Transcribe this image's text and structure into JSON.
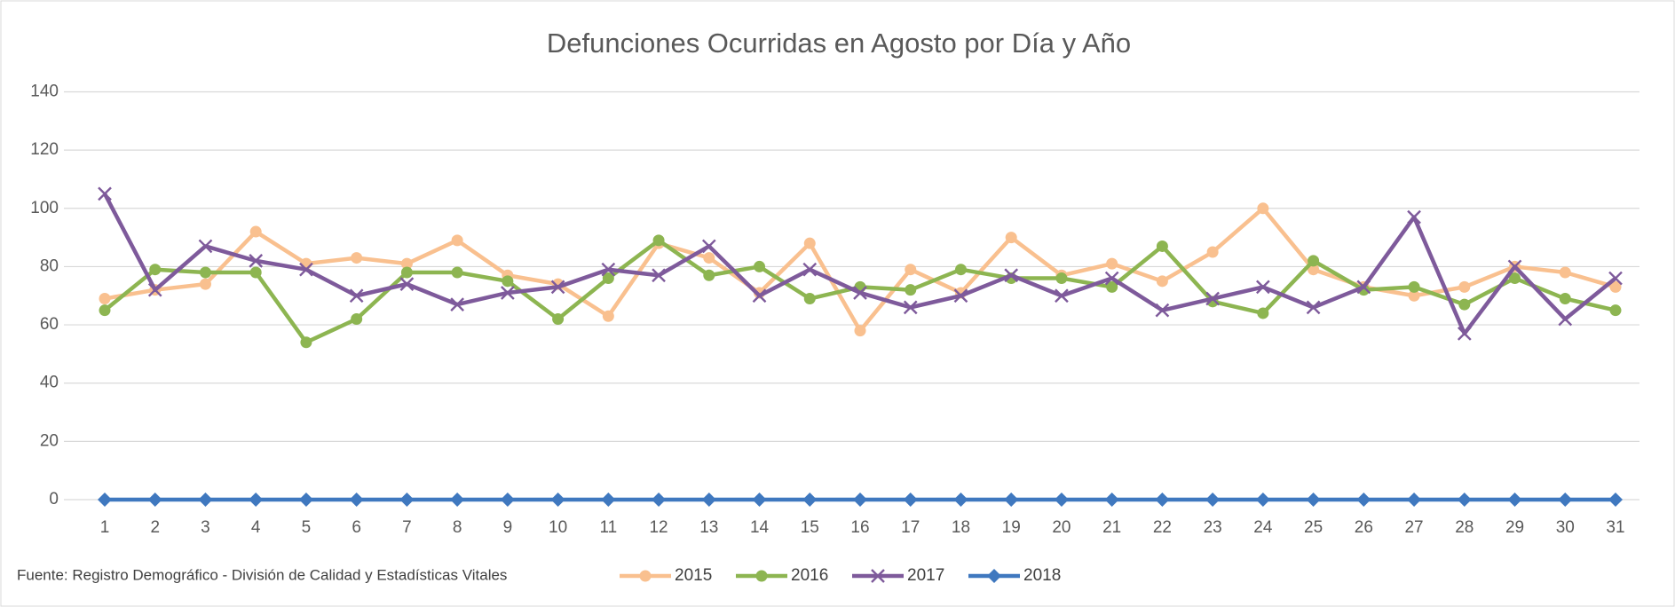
{
  "chart_data": {
    "type": "line",
    "title": "Defunciones Ocurridas en Agosto por Día y Año",
    "source": "Fuente: Registro Demográfico - División de Calidad y Estadísticas Vitales",
    "categories": [
      "1",
      "2",
      "3",
      "4",
      "5",
      "6",
      "7",
      "8",
      "9",
      "10",
      "11",
      "12",
      "13",
      "14",
      "15",
      "16",
      "17",
      "18",
      "19",
      "20",
      "21",
      "22",
      "23",
      "24",
      "25",
      "26",
      "27",
      "28",
      "29",
      "30",
      "31"
    ],
    "series": [
      {
        "name": "2015",
        "color": "#f9c08f",
        "marker": "circle",
        "values": [
          69,
          72,
          74,
          92,
          81,
          83,
          81,
          89,
          77,
          74,
          63,
          88,
          83,
          71,
          88,
          58,
          79,
          71,
          90,
          77,
          81,
          75,
          85,
          100,
          79,
          73,
          70,
          73,
          80,
          78,
          73
        ]
      },
      {
        "name": "2016",
        "color": "#8db551",
        "marker": "circle",
        "values": [
          65,
          79,
          78,
          78,
          54,
          62,
          78,
          78,
          75,
          62,
          76,
          89,
          77,
          80,
          69,
          73,
          72,
          79,
          76,
          76,
          73,
          87,
          68,
          64,
          82,
          72,
          73,
          67,
          76,
          69,
          65
        ]
      },
      {
        "name": "2017",
        "color": "#7e5a9b",
        "marker": "x",
        "values": [
          105,
          72,
          87,
          82,
          79,
          70,
          74,
          67,
          71,
          73,
          79,
          77,
          87,
          70,
          79,
          71,
          66,
          70,
          77,
          70,
          76,
          65,
          69,
          73,
          66,
          73,
          97,
          57,
          80,
          62,
          76
        ]
      },
      {
        "name": "2018",
        "color": "#3f78bf",
        "marker": "diamond",
        "values": [
          0,
          0,
          0,
          0,
          0,
          0,
          0,
          0,
          0,
          0,
          0,
          0,
          0,
          0,
          0,
          0,
          0,
          0,
          0,
          0,
          0,
          0,
          0,
          0,
          0,
          0,
          0,
          0,
          0,
          0,
          0
        ]
      }
    ],
    "ylim": [
      0,
      140
    ],
    "yticks": [
      0,
      20,
      40,
      60,
      80,
      100,
      120,
      140
    ],
    "grid": true,
    "legend": "bottom"
  }
}
